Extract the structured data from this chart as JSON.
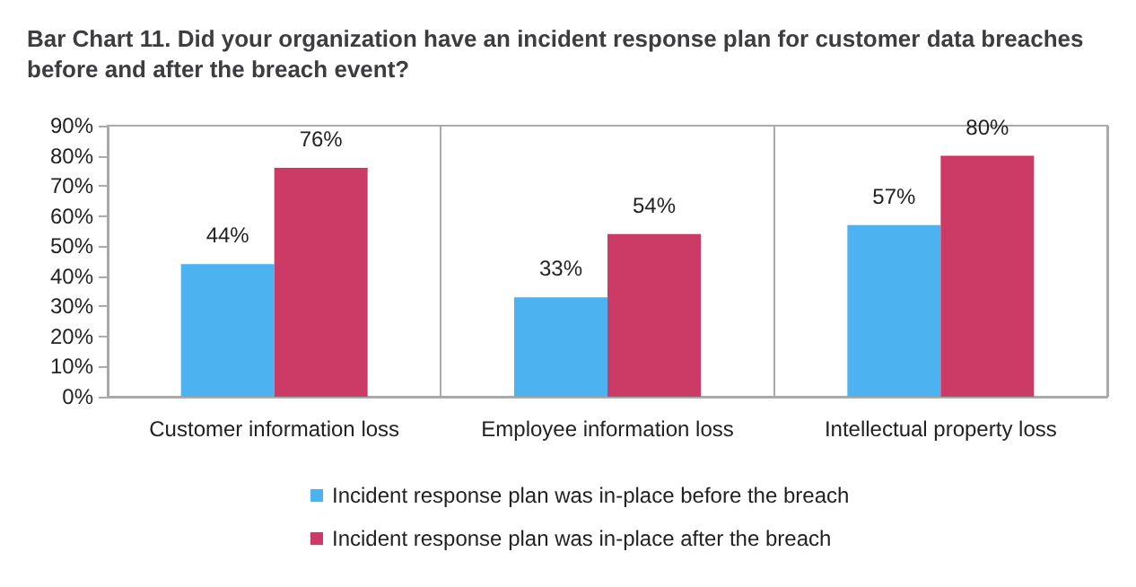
{
  "chart_data": {
    "type": "bar",
    "title": "Bar Chart 11. Did your organization have an incident response plan for customer data breaches before and after the breach event?",
    "categories": [
      "Customer information loss",
      "Employee information loss",
      "Intellectual property loss"
    ],
    "series": [
      {
        "name": "Incident response plan was in-place before the breach",
        "color": "#4db3f0",
        "values": [
          44,
          33,
          57
        ],
        "value_labels": [
          "44%",
          "33%",
          "57%"
        ]
      },
      {
        "name": "Incident response plan was in-place after the breach",
        "color": "#cc3a66",
        "values": [
          76,
          54,
          80
        ],
        "value_labels": [
          "76%",
          "54%",
          "80%"
        ]
      }
    ],
    "ylim": [
      0,
      90
    ],
    "yticks": [
      {
        "value": 0,
        "label": "0%"
      },
      {
        "value": 10,
        "label": "10%"
      },
      {
        "value": 20,
        "label": "20%"
      },
      {
        "value": 30,
        "label": "30%"
      },
      {
        "value": 40,
        "label": "40%"
      },
      {
        "value": 50,
        "label": "50%"
      },
      {
        "value": 60,
        "label": "60%"
      },
      {
        "value": 70,
        "label": "70%"
      },
      {
        "value": 80,
        "label": "80%"
      },
      {
        "value": 90,
        "label": "90%"
      }
    ],
    "grid": "x",
    "legend": "bottom"
  }
}
